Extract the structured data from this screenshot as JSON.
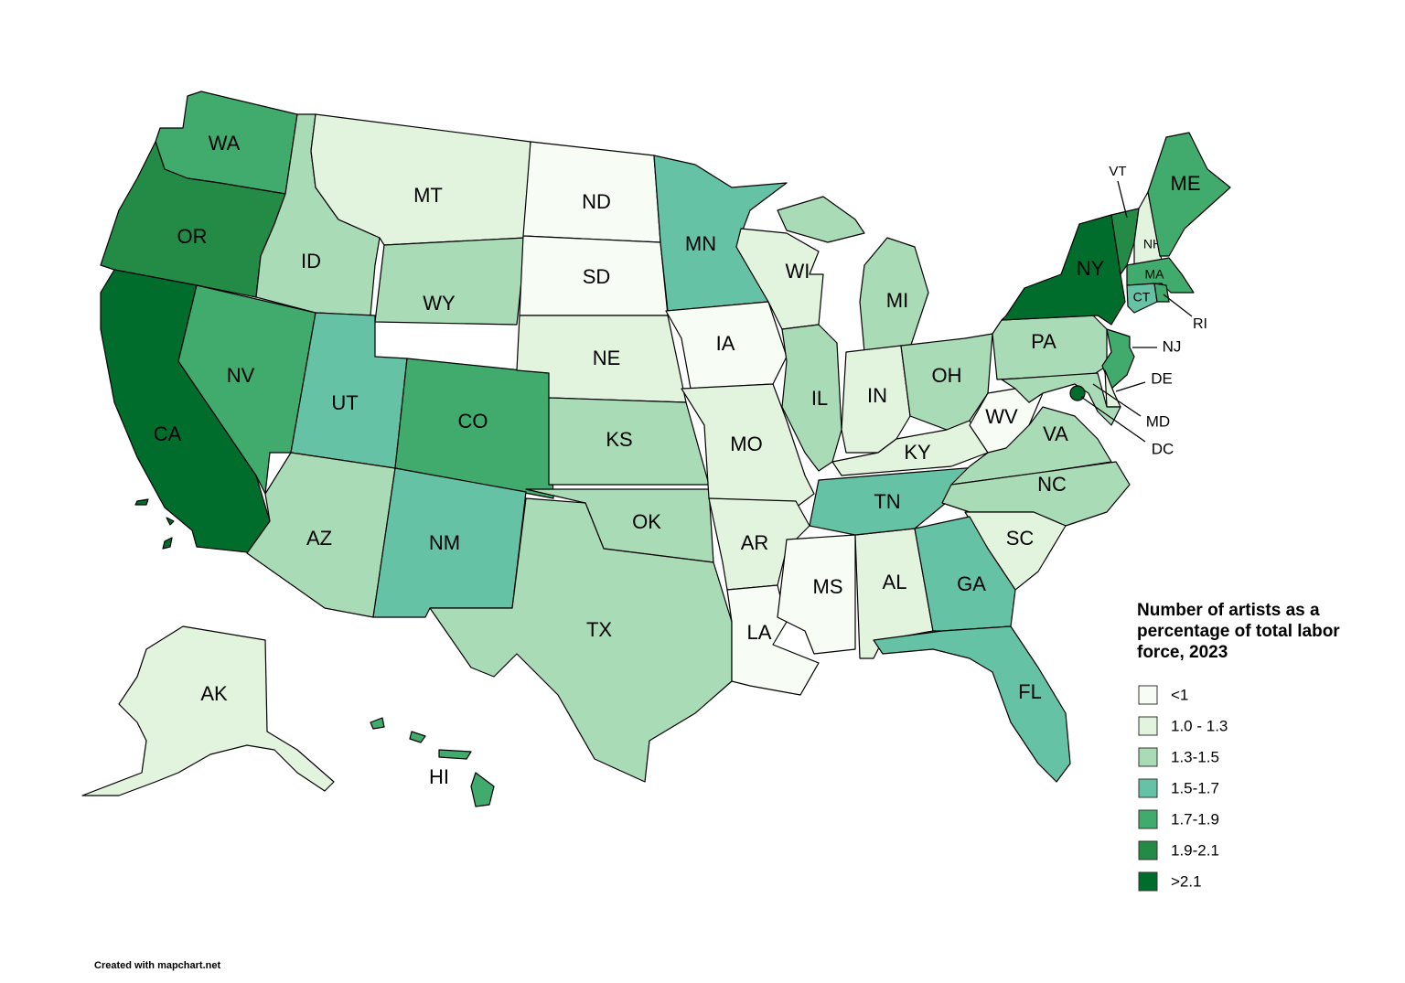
{
  "legend": {
    "title": "Number of artists as a percentage of total labor force, 2023",
    "items": [
      {
        "label": "<1",
        "color": "#f7fcf5"
      },
      {
        "label": "1.0 - 1.3",
        "color": "#e2f4de"
      },
      {
        "label": "1.3-1.5",
        "color": "#a9dcb6"
      },
      {
        "label": "1.5-1.7",
        "color": "#66c2a5"
      },
      {
        "label": "1.7-1.9",
        "color": "#41ab6e"
      },
      {
        "label": "1.9-2.1",
        "color": "#238b45"
      },
      {
        "label": ">2.1",
        "color": "#006d2c"
      }
    ]
  },
  "states": [
    {
      "abbr": "WA",
      "class": 4
    },
    {
      "abbr": "OR",
      "class": 5
    },
    {
      "abbr": "CA",
      "class": 6
    },
    {
      "abbr": "NV",
      "class": 4
    },
    {
      "abbr": "ID",
      "class": 2
    },
    {
      "abbr": "MT",
      "class": 1
    },
    {
      "abbr": "WY",
      "class": 2
    },
    {
      "abbr": "UT",
      "class": 3
    },
    {
      "abbr": "CO",
      "class": 4
    },
    {
      "abbr": "AZ",
      "class": 2
    },
    {
      "abbr": "NM",
      "class": 3
    },
    {
      "abbr": "ND",
      "class": 0
    },
    {
      "abbr": "SD",
      "class": 0
    },
    {
      "abbr": "NE",
      "class": 1
    },
    {
      "abbr": "KS",
      "class": 2
    },
    {
      "abbr": "OK",
      "class": 2
    },
    {
      "abbr": "TX",
      "class": 2
    },
    {
      "abbr": "MN",
      "class": 3
    },
    {
      "abbr": "IA",
      "class": 0
    },
    {
      "abbr": "MO",
      "class": 1
    },
    {
      "abbr": "AR",
      "class": 1
    },
    {
      "abbr": "LA",
      "class": 0
    },
    {
      "abbr": "MS",
      "class": 0
    },
    {
      "abbr": "AL",
      "class": 1
    },
    {
      "abbr": "WI",
      "class": 1
    },
    {
      "abbr": "MI",
      "class": 2
    },
    {
      "abbr": "IL",
      "class": 2
    },
    {
      "abbr": "IN",
      "class": 1
    },
    {
      "abbr": "OH",
      "class": 2
    },
    {
      "abbr": "KY",
      "class": 1
    },
    {
      "abbr": "TN",
      "class": 3
    },
    {
      "abbr": "WV",
      "class": 0
    },
    {
      "abbr": "VA",
      "class": 2
    },
    {
      "abbr": "NC",
      "class": 2
    },
    {
      "abbr": "SC",
      "class": 1
    },
    {
      "abbr": "GA",
      "class": 3
    },
    {
      "abbr": "FL",
      "class": 3
    },
    {
      "abbr": "PA",
      "class": 2
    },
    {
      "abbr": "NY",
      "class": 6
    },
    {
      "abbr": "VT",
      "class": 5
    },
    {
      "abbr": "NH",
      "class": 1
    },
    {
      "abbr": "ME",
      "class": 4
    },
    {
      "abbr": "MA",
      "class": 4
    },
    {
      "abbr": "CT",
      "class": 3
    },
    {
      "abbr": "RI",
      "class": 4
    },
    {
      "abbr": "NJ",
      "class": 4
    },
    {
      "abbr": "DE",
      "class": 1
    },
    {
      "abbr": "MD",
      "class": 2
    },
    {
      "abbr": "DC",
      "class": 6
    },
    {
      "abbr": "AK",
      "class": 1
    },
    {
      "abbr": "HI",
      "class": 4
    }
  ],
  "credit": "Created with mapchart.net"
}
